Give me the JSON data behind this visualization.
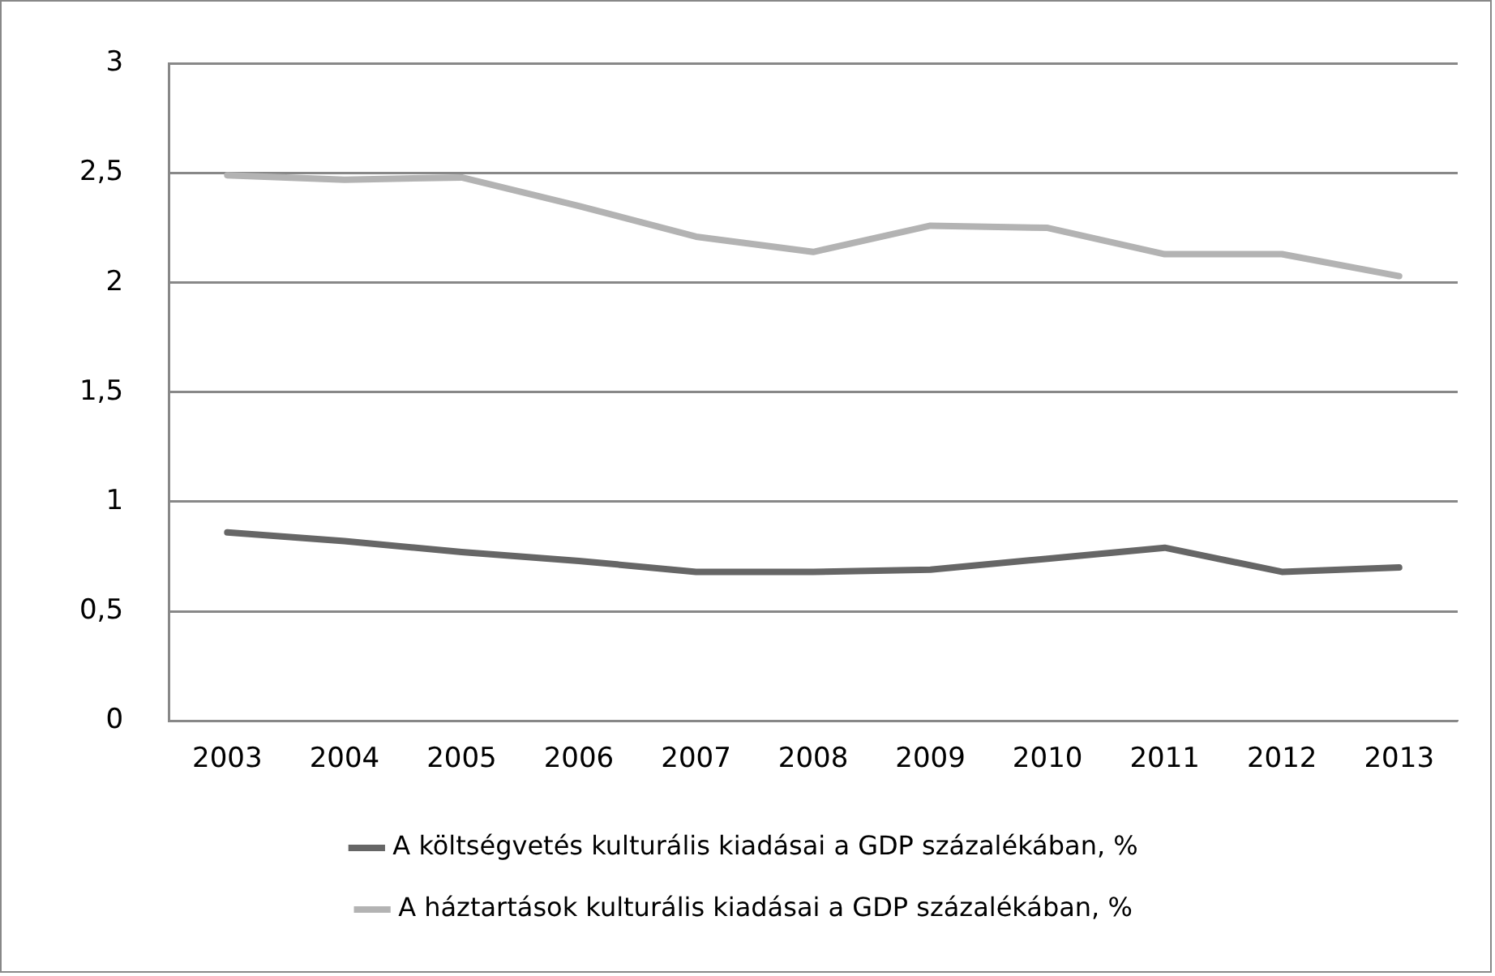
{
  "chart_data": {
    "type": "line",
    "categories": [
      "2003",
      "2004",
      "2005",
      "2006",
      "2007",
      "2008",
      "2009",
      "2010",
      "2011",
      "2012",
      "2013"
    ],
    "series": [
      {
        "name": "A költségvetés kulturális kiadásai a GDP százalékában, %",
        "color": "#666666",
        "values": [
          0.86,
          0.82,
          0.77,
          0.73,
          0.68,
          0.68,
          0.69,
          0.74,
          0.79,
          0.68,
          0.7
        ]
      },
      {
        "name": "A háztartások kulturális kiadásai a GDP százalékában, %",
        "color": "#b3b3b3",
        "values": [
          2.49,
          2.47,
          2.48,
          2.35,
          2.21,
          2.14,
          2.26,
          2.25,
          2.13,
          2.13,
          2.03
        ]
      }
    ],
    "ylim": [
      0,
      3
    ],
    "yticks": [
      0,
      {
        "value": 0.5,
        "label": "0,5"
      },
      1,
      {
        "value": 1.5,
        "label": "1,5"
      },
      2,
      {
        "value": 2.5,
        "label": "2,5"
      },
      3
    ],
    "grid": "y",
    "legend": "bottom",
    "marker": "none",
    "line_style": "solid"
  }
}
